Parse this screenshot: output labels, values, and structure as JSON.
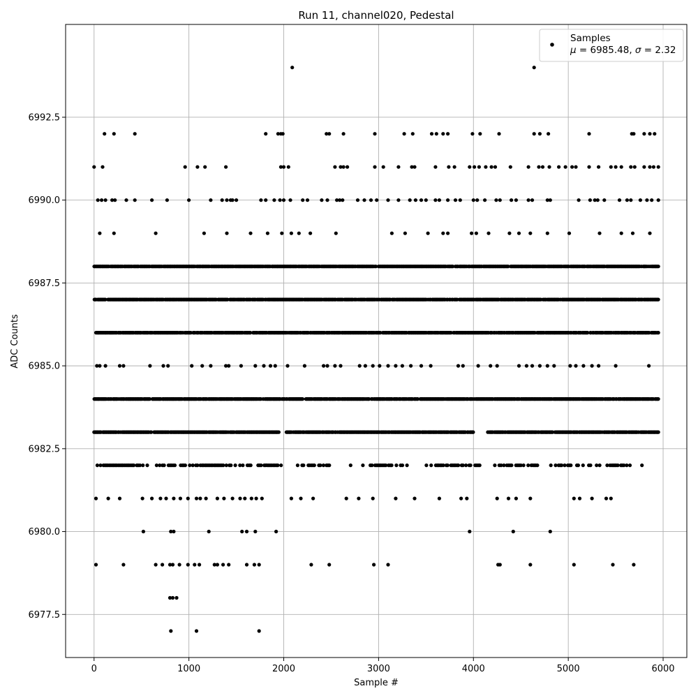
{
  "chart_data": {
    "type": "scatter",
    "title": "Run 11, channel020, Pedestal",
    "xlabel": "Sample #",
    "ylabel": "ADC Counts",
    "xlim": [
      -300,
      6250
    ],
    "ylim": [
      6976.2,
      6995.3
    ],
    "xticks": [
      0,
      1000,
      2000,
      3000,
      4000,
      5000,
      6000
    ],
    "xtick_labels": [
      "0",
      "1000",
      "2000",
      "3000",
      "4000",
      "5000",
      "6000"
    ],
    "yticks": [
      6977.5,
      6980.0,
      6982.5,
      6985.0,
      6987.5,
      6990.0,
      6992.5
    ],
    "ytick_labels": [
      "6977.5",
      "6980.0",
      "6982.5",
      "6985.0",
      "6987.5",
      "6990.0",
      "6992.5"
    ],
    "grid": true,
    "legend_position": "upper right",
    "marker_color": "#000000",
    "legend": {
      "label": "Samples",
      "stats_mu": "6985.48",
      "stats_sigma": "2.32"
    },
    "series": [
      {
        "name": "Samples",
        "x_range": [
          0,
          5950
        ],
        "levels": [
          {
            "y": 6994,
            "x": [
              2090,
              4640
            ]
          },
          {
            "y": 6992,
            "x": [
              110,
              210,
              430,
              1810,
              1940,
              1970,
              1990,
              2450,
              2480,
              2630,
              2960,
              3270,
              3360,
              3560,
              3610,
              3680,
              3730,
              3990,
              4070,
              4270,
              4640,
              4700,
              4790,
              5220,
              5670,
              5690,
              5800,
              5860,
              5910
            ]
          },
          {
            "y": 6991,
            "x": [
              0,
              90,
              960,
              1090,
              1170,
              1390,
              1970,
              2000,
              2050,
              2540,
              2600,
              2630,
              2670,
              2960,
              3050,
              3210,
              3350,
              3380,
              3600,
              3740,
              3800,
              3960,
              4010,
              4060,
              4130,
              4190,
              4230,
              4390,
              4580,
              4690,
              4730,
              4800,
              4900,
              4970,
              5040,
              5080,
              5220,
              5320,
              5450,
              5500,
              5560,
              5660,
              5700,
              5800,
              5860,
              5900,
              5950
            ]
          },
          {
            "y": 6990,
            "x": [
              40,
              80,
              120,
              190,
              220,
              340,
              430,
              610,
              770,
              1000,
              1230,
              1350,
              1400,
              1440,
              1460,
              1500,
              1760,
              1810,
              1900,
              1960,
              2000,
              2070,
              2200,
              2250,
              2400,
              2460,
              2560,
              2590,
              2620,
              2780,
              2850,
              2920,
              2980,
              3100,
              3210,
              3330,
              3390,
              3450,
              3500,
              3600,
              3640,
              3730,
              3810,
              3860,
              4000,
              4040,
              4120,
              4240,
              4280,
              4400,
              4450,
              4580,
              4620,
              4780,
              4810,
              5110,
              5230,
              5280,
              5310,
              5380,
              5540,
              5620,
              5660,
              5760,
              5830,
              5880,
              5950
            ]
          },
          {
            "y": 6989,
            "x": [
              60,
              210,
              650,
              1160,
              1400,
              1650,
              1830,
              1980,
              2080,
              2160,
              2280,
              2550,
              3140,
              3280,
              3520,
              3680,
              3730,
              3980,
              4030,
              4160,
              4380,
              4480,
              4600,
              4780,
              5010,
              5330,
              5560,
              5680,
              5860
            ]
          },
          {
            "y": 6988,
            "x_from": 0,
            "x_to": 5950,
            "density": "dense"
          },
          {
            "y": 6987,
            "x_from": 0,
            "x_to": 5950,
            "density": "dense"
          },
          {
            "y": 6986,
            "x_from": 0,
            "x_to": 5950,
            "density": "dense"
          },
          {
            "y": 6985,
            "x": [
              30,
              60,
              120,
              270,
              310,
              590,
              730,
              780,
              1030,
              1140,
              1230,
              1390,
              1420,
              1550,
              1700,
              1790,
              1860,
              1910,
              2040,
              2220,
              2420,
              2460,
              2540,
              2600,
              2800,
              2860,
              2940,
              3010,
              3100,
              3180,
              3250,
              3340,
              3450,
              3550,
              3840,
              3890,
              4050,
              4180,
              4250,
              4480,
              4560,
              4620,
              4700,
              4780,
              4850,
              5020,
              5080,
              5160,
              5250,
              5320,
              5500,
              5850
            ]
          },
          {
            "y": 6984,
            "x_from": 0,
            "x_to": 5950,
            "density": "dense"
          },
          {
            "y": 6983,
            "x_from": 0,
            "x_to": 5950,
            "density": "dense",
            "gaps": [
              [
                1950,
                2020
              ],
              [
                4000,
                4140
              ]
            ]
          },
          {
            "y": 6982,
            "x_from": 0,
            "x_to": 5800,
            "density": "medium",
            "gaps": [
              [
                1980,
                2130
              ],
              [
                2500,
                2690
              ],
              [
                3320,
                3500
              ],
              [
                4080,
                4210
              ],
              [
                4680,
                4780
              ]
            ]
          },
          {
            "y": 6981,
            "x": [
              20,
              150,
              270,
              510,
              610,
              700,
              760,
              840,
              910,
              990,
              1080,
              1120,
              1180,
              1300,
              1370,
              1460,
              1540,
              1590,
              1660,
              1710,
              1770,
              2080,
              2180,
              2310,
              2660,
              2790,
              2940,
              3180,
              3380,
              3640,
              3870,
              3930,
              4250,
              4370,
              4450,
              4600,
              5060,
              5120,
              5250,
              5400,
              5450
            ]
          },
          {
            "y": 6980,
            "x": [
              520,
              810,
              840,
              1210,
              1560,
              1610,
              1700,
              1920,
              3960,
              4420,
              4810
            ]
          },
          {
            "y": 6979,
            "x": [
              20,
              310,
              650,
              720,
              800,
              830,
              900,
              990,
              1060,
              1110,
              1270,
              1300,
              1360,
              1420,
              1610,
              1690,
              1740,
              2290,
              2480,
              2950,
              3100,
              4260,
              4280,
              4600,
              5060,
              5470,
              5690
            ]
          },
          {
            "y": 6978,
            "x": [
              800,
              830,
              870
            ]
          },
          {
            "y": 6977,
            "x": [
              810,
              1080,
              1740
            ]
          }
        ]
      }
    ]
  }
}
